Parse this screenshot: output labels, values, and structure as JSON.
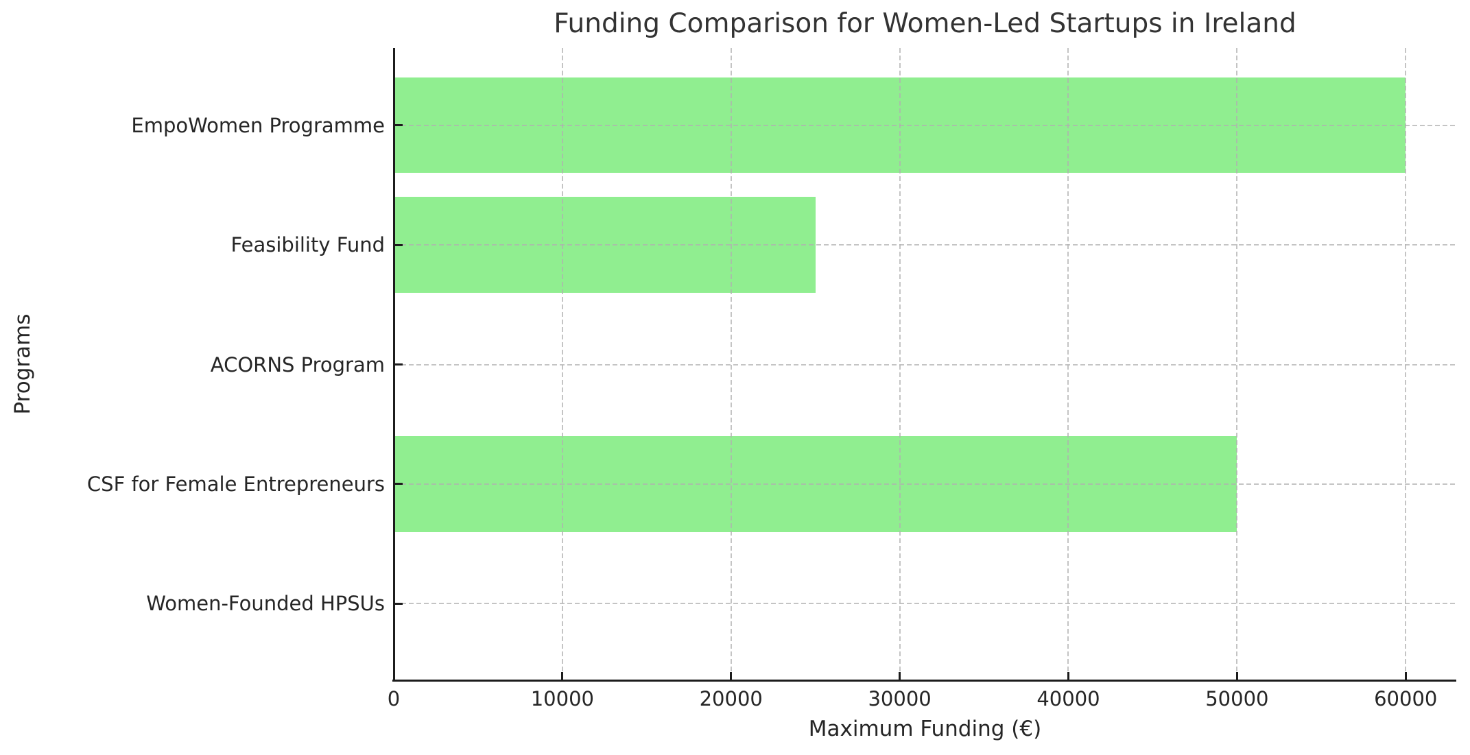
{
  "chart_data": {
    "type": "bar",
    "orientation": "horizontal",
    "title": "Funding Comparison for Women-Led Startups in Ireland",
    "xlabel": "Maximum Funding (€)",
    "ylabel": "Programs",
    "categories": [
      "EmpoWomen Programme",
      "Feasibility Fund",
      "ACORNS Program",
      "CSF for Female Entrepreneurs",
      "Women-Founded HPSUs"
    ],
    "values": [
      60000,
      25000,
      0,
      50000,
      0
    ],
    "xticks": [
      0,
      10000,
      20000,
      30000,
      40000,
      50000,
      60000
    ],
    "xtick_labels": [
      "0",
      "10000",
      "20000",
      "30000",
      "40000",
      "50000",
      "60000"
    ],
    "xlim": [
      0,
      63000
    ],
    "bar_height_fraction": 0.8,
    "grid": "dashed",
    "grid_over_bars": true,
    "legend": null,
    "colors": {
      "bar": "#90EE90",
      "grid": "#b0b0b0",
      "spine": "#1c1c1c",
      "tick_text": "#262626",
      "title_text": "#333333",
      "background": "#ffffff"
    }
  }
}
